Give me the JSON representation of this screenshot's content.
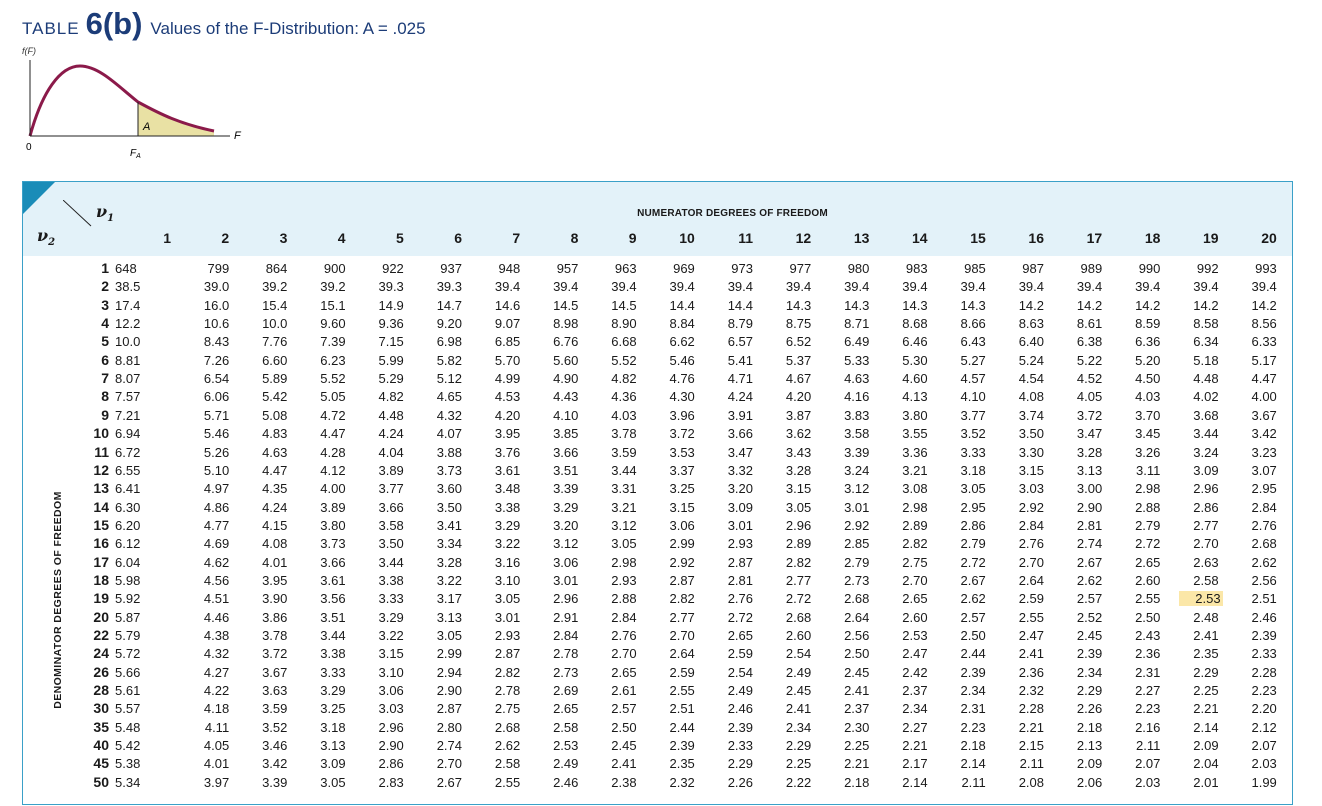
{
  "title": {
    "prefix": "TABLE",
    "number": "6(b)",
    "text": "Values of the F-Distribution: A = .025"
  },
  "figure": {
    "y_label": "f(F)",
    "area_label": "A",
    "x_label": "F",
    "origin_label": "0",
    "critical_label": "F_A"
  },
  "table": {
    "numerator_label": "NUMERATOR DEGREES OF FREEDOM",
    "denominator_label": "DENOMINATOR DEGREES OF FREEDOM",
    "nu1_label": "ν1",
    "nu2_label": "ν2",
    "highlight": {
      "row": 19,
      "col": 19,
      "color": "#fbe7a8"
    },
    "columns": [
      "1",
      "2",
      "3",
      "4",
      "5",
      "6",
      "7",
      "8",
      "9",
      "10",
      "11",
      "12",
      "13",
      "14",
      "15",
      "16",
      "17",
      "18",
      "19",
      "20"
    ],
    "rows": [
      {
        "v2": "1",
        "values": [
          "648",
          "799",
          "864",
          "900",
          "922",
          "937",
          "948",
          "957",
          "963",
          "969",
          "973",
          "977",
          "980",
          "983",
          "985",
          "987",
          "989",
          "990",
          "992",
          "993"
        ]
      },
      {
        "v2": "2",
        "values": [
          "38.5",
          "39.0",
          "39.2",
          "39.2",
          "39.3",
          "39.3",
          "39.4",
          "39.4",
          "39.4",
          "39.4",
          "39.4",
          "39.4",
          "39.4",
          "39.4",
          "39.4",
          "39.4",
          "39.4",
          "39.4",
          "39.4",
          "39.4"
        ]
      },
      {
        "v2": "3",
        "values": [
          "17.4",
          "16.0",
          "15.4",
          "15.1",
          "14.9",
          "14.7",
          "14.6",
          "14.5",
          "14.5",
          "14.4",
          "14.4",
          "14.3",
          "14.3",
          "14.3",
          "14.3",
          "14.2",
          "14.2",
          "14.2",
          "14.2",
          "14.2"
        ]
      },
      {
        "v2": "4",
        "values": [
          "12.2",
          "10.6",
          "10.0",
          "9.60",
          "9.36",
          "9.20",
          "9.07",
          "8.98",
          "8.90",
          "8.84",
          "8.79",
          "8.75",
          "8.71",
          "8.68",
          "8.66",
          "8.63",
          "8.61",
          "8.59",
          "8.58",
          "8.56"
        ]
      },
      {
        "v2": "5",
        "values": [
          "10.0",
          "8.43",
          "7.76",
          "7.39",
          "7.15",
          "6.98",
          "6.85",
          "6.76",
          "6.68",
          "6.62",
          "6.57",
          "6.52",
          "6.49",
          "6.46",
          "6.43",
          "6.40",
          "6.38",
          "6.36",
          "6.34",
          "6.33"
        ]
      },
      {
        "v2": "6",
        "values": [
          "8.81",
          "7.26",
          "6.60",
          "6.23",
          "5.99",
          "5.82",
          "5.70",
          "5.60",
          "5.52",
          "5.46",
          "5.41",
          "5.37",
          "5.33",
          "5.30",
          "5.27",
          "5.24",
          "5.22",
          "5.20",
          "5.18",
          "5.17"
        ]
      },
      {
        "v2": "7",
        "values": [
          "8.07",
          "6.54",
          "5.89",
          "5.52",
          "5.29",
          "5.12",
          "4.99",
          "4.90",
          "4.82",
          "4.76",
          "4.71",
          "4.67",
          "4.63",
          "4.60",
          "4.57",
          "4.54",
          "4.52",
          "4.50",
          "4.48",
          "4.47"
        ]
      },
      {
        "v2": "8",
        "values": [
          "7.57",
          "6.06",
          "5.42",
          "5.05",
          "4.82",
          "4.65",
          "4.53",
          "4.43",
          "4.36",
          "4.30",
          "4.24",
          "4.20",
          "4.16",
          "4.13",
          "4.10",
          "4.08",
          "4.05",
          "4.03",
          "4.02",
          "4.00"
        ]
      },
      {
        "v2": "9",
        "values": [
          "7.21",
          "5.71",
          "5.08",
          "4.72",
          "4.48",
          "4.32",
          "4.20",
          "4.10",
          "4.03",
          "3.96",
          "3.91",
          "3.87",
          "3.83",
          "3.80",
          "3.77",
          "3.74",
          "3.72",
          "3.70",
          "3.68",
          "3.67"
        ]
      },
      {
        "v2": "10",
        "values": [
          "6.94",
          "5.46",
          "4.83",
          "4.47",
          "4.24",
          "4.07",
          "3.95",
          "3.85",
          "3.78",
          "3.72",
          "3.66",
          "3.62",
          "3.58",
          "3.55",
          "3.52",
          "3.50",
          "3.47",
          "3.45",
          "3.44",
          "3.42"
        ]
      },
      {
        "v2": "11",
        "values": [
          "6.72",
          "5.26",
          "4.63",
          "4.28",
          "4.04",
          "3.88",
          "3.76",
          "3.66",
          "3.59",
          "3.53",
          "3.47",
          "3.43",
          "3.39",
          "3.36",
          "3.33",
          "3.30",
          "3.28",
          "3.26",
          "3.24",
          "3.23"
        ]
      },
      {
        "v2": "12",
        "values": [
          "6.55",
          "5.10",
          "4.47",
          "4.12",
          "3.89",
          "3.73",
          "3.61",
          "3.51",
          "3.44",
          "3.37",
          "3.32",
          "3.28",
          "3.24",
          "3.21",
          "3.18",
          "3.15",
          "3.13",
          "3.11",
          "3.09",
          "3.07"
        ]
      },
      {
        "v2": "13",
        "values": [
          "6.41",
          "4.97",
          "4.35",
          "4.00",
          "3.77",
          "3.60",
          "3.48",
          "3.39",
          "3.31",
          "3.25",
          "3.20",
          "3.15",
          "3.12",
          "3.08",
          "3.05",
          "3.03",
          "3.00",
          "2.98",
          "2.96",
          "2.95"
        ]
      },
      {
        "v2": "14",
        "values": [
          "6.30",
          "4.86",
          "4.24",
          "3.89",
          "3.66",
          "3.50",
          "3.38",
          "3.29",
          "3.21",
          "3.15",
          "3.09",
          "3.05",
          "3.01",
          "2.98",
          "2.95",
          "2.92",
          "2.90",
          "2.88",
          "2.86",
          "2.84"
        ]
      },
      {
        "v2": "15",
        "values": [
          "6.20",
          "4.77",
          "4.15",
          "3.80",
          "3.58",
          "3.41",
          "3.29",
          "3.20",
          "3.12",
          "3.06",
          "3.01",
          "2.96",
          "2.92",
          "2.89",
          "2.86",
          "2.84",
          "2.81",
          "2.79",
          "2.77",
          "2.76"
        ]
      },
      {
        "v2": "16",
        "values": [
          "6.12",
          "4.69",
          "4.08",
          "3.73",
          "3.50",
          "3.34",
          "3.22",
          "3.12",
          "3.05",
          "2.99",
          "2.93",
          "2.89",
          "2.85",
          "2.82",
          "2.79",
          "2.76",
          "2.74",
          "2.72",
          "2.70",
          "2.68"
        ]
      },
      {
        "v2": "17",
        "values": [
          "6.04",
          "4.62",
          "4.01",
          "3.66",
          "3.44",
          "3.28",
          "3.16",
          "3.06",
          "2.98",
          "2.92",
          "2.87",
          "2.82",
          "2.79",
          "2.75",
          "2.72",
          "2.70",
          "2.67",
          "2.65",
          "2.63",
          "2.62"
        ]
      },
      {
        "v2": "18",
        "values": [
          "5.98",
          "4.56",
          "3.95",
          "3.61",
          "3.38",
          "3.22",
          "3.10",
          "3.01",
          "2.93",
          "2.87",
          "2.81",
          "2.77",
          "2.73",
          "2.70",
          "2.67",
          "2.64",
          "2.62",
          "2.60",
          "2.58",
          "2.56"
        ]
      },
      {
        "v2": "19",
        "values": [
          "5.92",
          "4.51",
          "3.90",
          "3.56",
          "3.33",
          "3.17",
          "3.05",
          "2.96",
          "2.88",
          "2.82",
          "2.76",
          "2.72",
          "2.68",
          "2.65",
          "2.62",
          "2.59",
          "2.57",
          "2.55",
          "2.53",
          "2.51"
        ]
      },
      {
        "v2": "20",
        "values": [
          "5.87",
          "4.46",
          "3.86",
          "3.51",
          "3.29",
          "3.13",
          "3.01",
          "2.91",
          "2.84",
          "2.77",
          "2.72",
          "2.68",
          "2.64",
          "2.60",
          "2.57",
          "2.55",
          "2.52",
          "2.50",
          "2.48",
          "2.46"
        ]
      },
      {
        "v2": "22",
        "values": [
          "5.79",
          "4.38",
          "3.78",
          "3.44",
          "3.22",
          "3.05",
          "2.93",
          "2.84",
          "2.76",
          "2.70",
          "2.65",
          "2.60",
          "2.56",
          "2.53",
          "2.50",
          "2.47",
          "2.45",
          "2.43",
          "2.41",
          "2.39"
        ]
      },
      {
        "v2": "24",
        "values": [
          "5.72",
          "4.32",
          "3.72",
          "3.38",
          "3.15",
          "2.99",
          "2.87",
          "2.78",
          "2.70",
          "2.64",
          "2.59",
          "2.54",
          "2.50",
          "2.47",
          "2.44",
          "2.41",
          "2.39",
          "2.36",
          "2.35",
          "2.33"
        ]
      },
      {
        "v2": "26",
        "values": [
          "5.66",
          "4.27",
          "3.67",
          "3.33",
          "3.10",
          "2.94",
          "2.82",
          "2.73",
          "2.65",
          "2.59",
          "2.54",
          "2.49",
          "2.45",
          "2.42",
          "2.39",
          "2.36",
          "2.34",
          "2.31",
          "2.29",
          "2.28"
        ]
      },
      {
        "v2": "28",
        "values": [
          "5.61",
          "4.22",
          "3.63",
          "3.29",
          "3.06",
          "2.90",
          "2.78",
          "2.69",
          "2.61",
          "2.55",
          "2.49",
          "2.45",
          "2.41",
          "2.37",
          "2.34",
          "2.32",
          "2.29",
          "2.27",
          "2.25",
          "2.23"
        ]
      },
      {
        "v2": "30",
        "values": [
          "5.57",
          "4.18",
          "3.59",
          "3.25",
          "3.03",
          "2.87",
          "2.75",
          "2.65",
          "2.57",
          "2.51",
          "2.46",
          "2.41",
          "2.37",
          "2.34",
          "2.31",
          "2.28",
          "2.26",
          "2.23",
          "2.21",
          "2.20"
        ]
      },
      {
        "v2": "35",
        "values": [
          "5.48",
          "4.11",
          "3.52",
          "3.18",
          "2.96",
          "2.80",
          "2.68",
          "2.58",
          "2.50",
          "2.44",
          "2.39",
          "2.34",
          "2.30",
          "2.27",
          "2.23",
          "2.21",
          "2.18",
          "2.16",
          "2.14",
          "2.12"
        ]
      },
      {
        "v2": "40",
        "values": [
          "5.42",
          "4.05",
          "3.46",
          "3.13",
          "2.90",
          "2.74",
          "2.62",
          "2.53",
          "2.45",
          "2.39",
          "2.33",
          "2.29",
          "2.25",
          "2.21",
          "2.18",
          "2.15",
          "2.13",
          "2.11",
          "2.09",
          "2.07"
        ]
      },
      {
        "v2": "45",
        "values": [
          "5.38",
          "4.01",
          "3.42",
          "3.09",
          "2.86",
          "2.70",
          "2.58",
          "2.49",
          "2.41",
          "2.35",
          "2.29",
          "2.25",
          "2.21",
          "2.17",
          "2.14",
          "2.11",
          "2.09",
          "2.07",
          "2.04",
          "2.03"
        ]
      },
      {
        "v2": "50",
        "values": [
          "5.34",
          "3.97",
          "3.39",
          "3.05",
          "2.83",
          "2.67",
          "2.55",
          "2.46",
          "2.38",
          "2.32",
          "2.26",
          "2.22",
          "2.18",
          "2.14",
          "2.11",
          "2.08",
          "2.06",
          "2.03",
          "2.01",
          "1.99"
        ]
      }
    ]
  }
}
